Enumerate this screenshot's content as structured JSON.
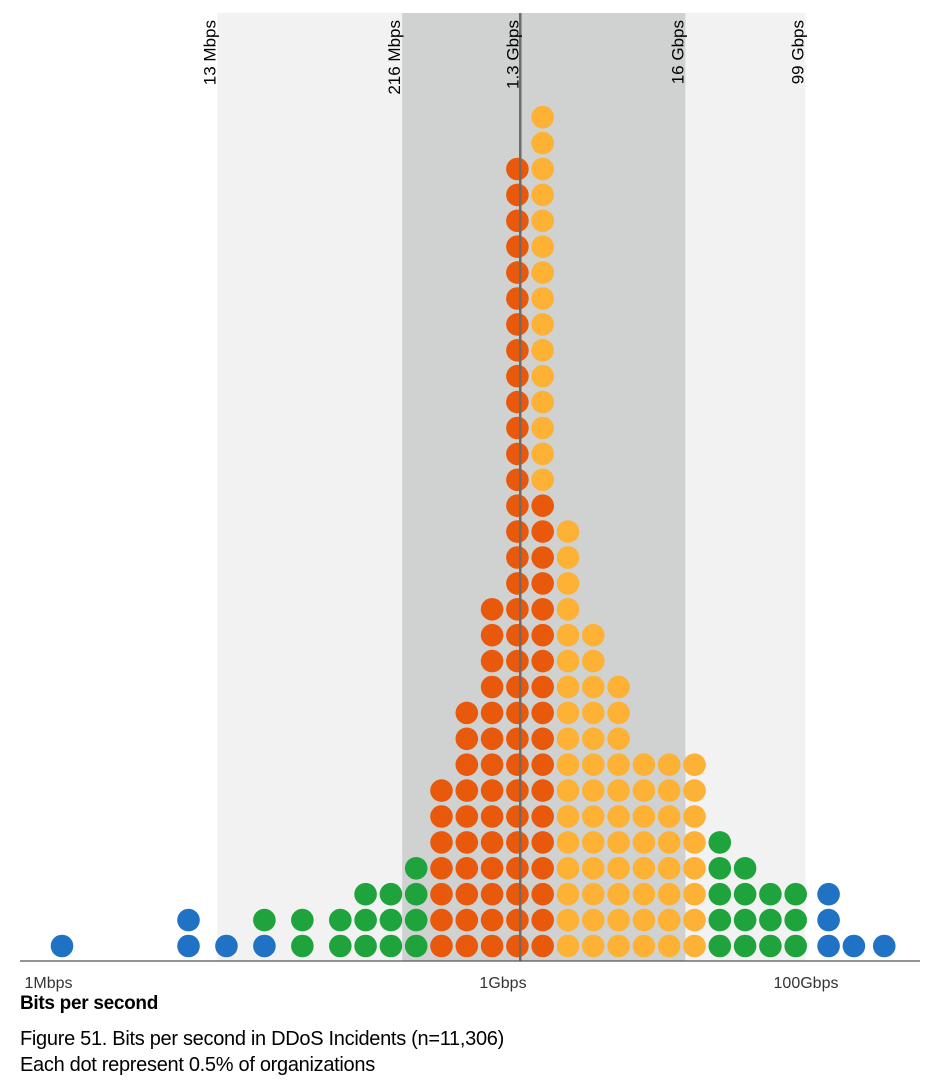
{
  "chart_data": {
    "type": "dot",
    "x_axis": {
      "scale": "log",
      "unit": "bps",
      "range": [
        1000000,
        500000000000
      ],
      "ticks": [
        {
          "value": 1000000,
          "label": "1Mbps"
        },
        {
          "value": 1000000000,
          "label": "1Gbps"
        },
        {
          "value": 100000000000,
          "label": "100Gbps"
        }
      ]
    },
    "xlabel": "Bits per second",
    "bands": [
      {
        "from": 13000000,
        "to": 99000000000,
        "shade": "light",
        "color": "#f2f2f2",
        "left_label": "13 Mbps",
        "right_label": "99 Gbps"
      },
      {
        "from": 216000000,
        "to": 16000000000,
        "shade": "dark",
        "color": "#d0d2d2",
        "left_label": "216 Mbps",
        "right_label": "16 Gbps"
      }
    ],
    "median": {
      "value": 1300000000,
      "label": "1.3 Gbps"
    },
    "dot_unit_percent": 0.5,
    "colors": {
      "outer": "#1f72c4",
      "mid": "#1fa33c",
      "inner_left": "#e8590c",
      "inner_right": "#fdb135",
      "median_line": "#6b6b6b",
      "axis": "#555555"
    },
    "columns": [
      {
        "col": 0,
        "dots": [
          {
            "color": "outer",
            "count": 1
          }
        ]
      },
      {
        "col": 5,
        "dots": [
          {
            "color": "outer",
            "count": 2
          }
        ]
      },
      {
        "col": 6.5,
        "dots": [
          {
            "color": "outer",
            "count": 1
          }
        ]
      },
      {
        "col": 8,
        "dots": [
          {
            "color": "outer",
            "count": 1
          },
          {
            "color": "mid",
            "count": 1
          }
        ]
      },
      {
        "col": 9.5,
        "dots": [
          {
            "color": "mid",
            "count": 2
          }
        ]
      },
      {
        "col": 11,
        "dots": [
          {
            "color": "mid",
            "count": 2
          }
        ]
      },
      {
        "col": 12,
        "dots": [
          {
            "color": "mid",
            "count": 3
          }
        ]
      },
      {
        "col": 13,
        "dots": [
          {
            "color": "mid",
            "count": 3
          }
        ]
      },
      {
        "col": 14,
        "dots": [
          {
            "color": "mid",
            "count": 4
          }
        ]
      },
      {
        "col": 15,
        "dots": [
          {
            "color": "inner_left",
            "count": 7
          }
        ]
      },
      {
        "col": 16,
        "dots": [
          {
            "color": "inner_left",
            "count": 10
          }
        ]
      },
      {
        "col": 17,
        "dots": [
          {
            "color": "inner_left",
            "count": 14
          }
        ]
      },
      {
        "col": 18,
        "dots": [
          {
            "color": "inner_left",
            "count": 31
          }
        ]
      },
      {
        "col": 19,
        "dots": [
          {
            "color": "inner_left",
            "count": 18
          },
          {
            "color": "inner_right",
            "count": 15
          }
        ]
      },
      {
        "col": 20,
        "dots": [
          {
            "color": "inner_right",
            "count": 17
          }
        ]
      },
      {
        "col": 21,
        "dots": [
          {
            "color": "inner_right",
            "count": 13
          }
        ]
      },
      {
        "col": 22,
        "dots": [
          {
            "color": "inner_right",
            "count": 11
          }
        ]
      },
      {
        "col": 23,
        "dots": [
          {
            "color": "inner_right",
            "count": 8
          }
        ]
      },
      {
        "col": 24,
        "dots": [
          {
            "color": "inner_right",
            "count": 8
          }
        ]
      },
      {
        "col": 25,
        "dots": [
          {
            "color": "inner_right",
            "count": 8
          }
        ]
      },
      {
        "col": 26,
        "dots": [
          {
            "color": "mid",
            "count": 5
          }
        ]
      },
      {
        "col": 27,
        "dots": [
          {
            "color": "mid",
            "count": 4
          }
        ]
      },
      {
        "col": 28,
        "dots": [
          {
            "color": "mid",
            "count": 3
          }
        ]
      },
      {
        "col": 29,
        "dots": [
          {
            "color": "mid",
            "count": 3
          }
        ]
      },
      {
        "col": 30.3,
        "dots": [
          {
            "color": "outer",
            "count": 3
          }
        ]
      },
      {
        "col": 31.3,
        "dots": [
          {
            "color": "outer",
            "count": 1
          }
        ]
      },
      {
        "col": 32.5,
        "dots": [
          {
            "color": "outer",
            "count": 1
          }
        ]
      }
    ]
  },
  "caption": {
    "line1": "Figure 51. Bits per second in DDoS Incidents (n=11,306)",
    "line2": "Each dot represent 0.5% of organizations"
  }
}
